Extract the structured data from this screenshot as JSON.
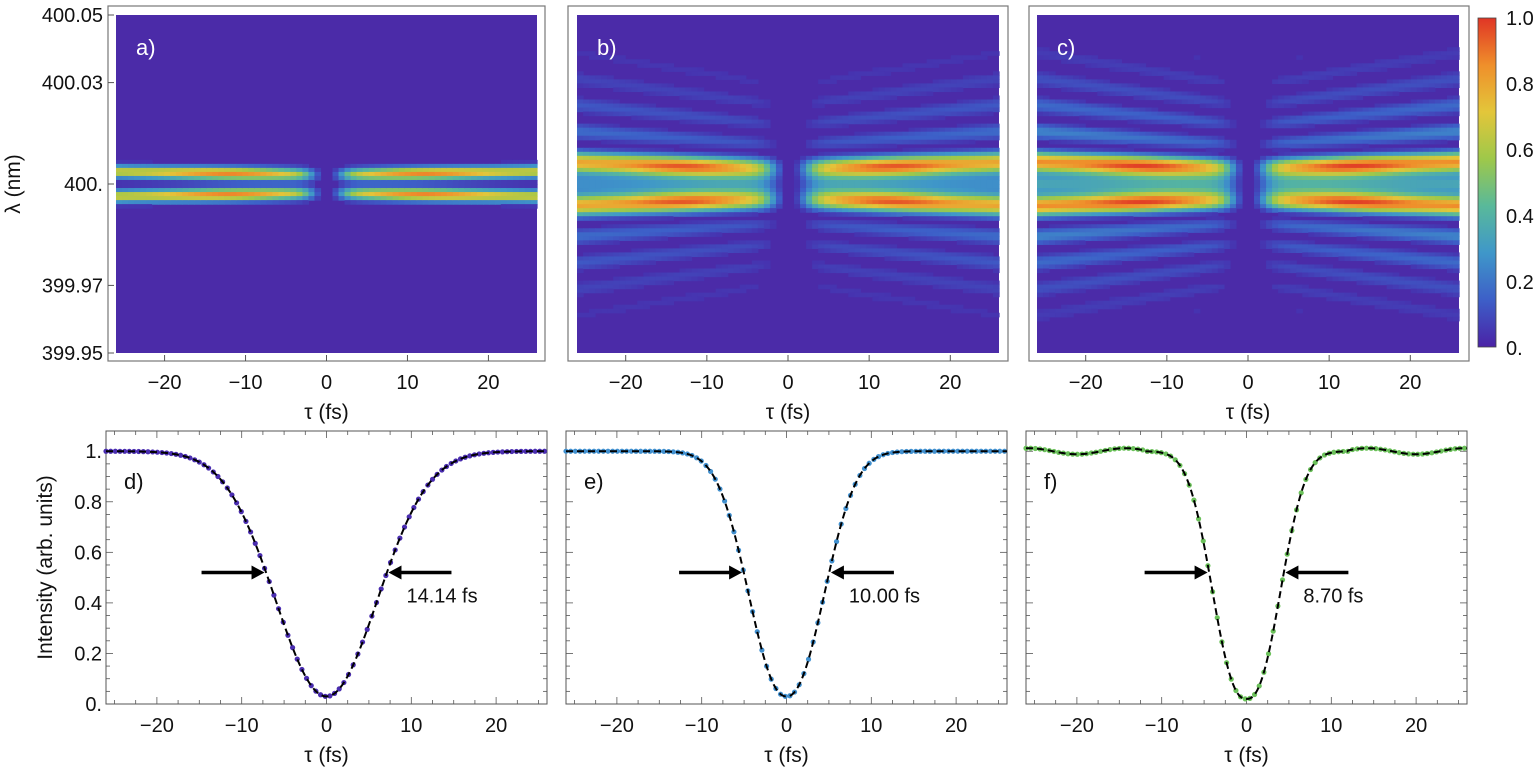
{
  "colors": {
    "background_blue": "#4b2ba8",
    "panel_frame": "#777777",
    "arrow": "#000000",
    "fit_line": "#000000",
    "colormap_stops": [
      "#4a22a6",
      "#3d5fc8",
      "#3f97c9",
      "#59b99a",
      "#9ec84a",
      "#e3c63a",
      "#ef8f2b",
      "#e03525"
    ]
  },
  "chart_data": [
    {
      "id": "a",
      "type": "heatmap",
      "panel_label": "a)",
      "xlabel": "τ (fs)",
      "ylabel": "λ (nm)",
      "xlim": [
        -26,
        26
      ],
      "ylim": [
        399.95,
        400.05
      ],
      "x_ticks": [
        -20,
        -10,
        0,
        10,
        20
      ],
      "x_tick_labels": [
        "−20",
        "−10",
        "0",
        "10",
        "20"
      ],
      "y_ticks": [
        400.05,
        400.03,
        400.0,
        399.97,
        399.95
      ],
      "y_tick_labels": [
        "400.05",
        "400.03",
        "400.",
        "399.97",
        "399.95"
      ],
      "center_wavelength": 400.0,
      "split_wavelength": 0.0027,
      "band_width": 0.0018,
      "fringe_strength": 0.0,
      "dip_halfwidth": 2.3,
      "edge_spread": 0.35,
      "peak_shift": 0.0
    },
    {
      "id": "b",
      "type": "heatmap",
      "panel_label": "b)",
      "xlabel": "τ (fs)",
      "ylabel": "",
      "xlim": [
        -26,
        26
      ],
      "ylim": [
        399.95,
        400.05
      ],
      "x_ticks": [
        -20,
        -10,
        0,
        10,
        20
      ],
      "x_tick_labels": [
        "−20",
        "−10",
        "0",
        "10",
        "20"
      ],
      "center_wavelength": 400.0,
      "split_wavelength": 0.0038,
      "band_width": 0.003,
      "fringe_strength": 0.55,
      "dip_halfwidth": 2.6,
      "edge_spread": 0.5,
      "peak_shift": 0.2
    },
    {
      "id": "c",
      "type": "heatmap",
      "panel_label": "c)",
      "xlabel": "τ (fs)",
      "ylabel": "",
      "xlim": [
        -26,
        26
      ],
      "ylim": [
        399.95,
        400.05
      ],
      "x_ticks": [
        -20,
        -10,
        0,
        10,
        20
      ],
      "x_tick_labels": [
        "−20",
        "−10",
        "0",
        "10",
        "20"
      ],
      "center_wavelength": 400.0,
      "split_wavelength": 0.0038,
      "band_width": 0.003,
      "fringe_strength": 0.75,
      "dip_halfwidth": 2.5,
      "edge_spread": 0.5,
      "peak_shift": 0.0
    },
    {
      "id": "d",
      "type": "line",
      "panel_label": "d)",
      "xlabel": "τ (fs)",
      "ylabel": "Intensity (arb. units)",
      "xlim": [
        -26,
        26
      ],
      "ylim": [
        0,
        1.08
      ],
      "x_ticks": [
        -20,
        -10,
        0,
        10,
        20
      ],
      "x_tick_labels": [
        "−20",
        "−10",
        "0",
        "10",
        "20"
      ],
      "y_ticks": [
        1.0,
        0.8,
        0.6,
        0.4,
        0.2,
        0.0
      ],
      "y_tick_labels": [
        "1.",
        "0.8",
        "0.6",
        "0.4",
        "0.2",
        "0."
      ],
      "series_color": "#4a2db0",
      "min_value": 0.03,
      "fwhm_fs": 14.14,
      "shape_exponent": 2.0,
      "marker_step": 1.0,
      "fwhm_label": "14.14 fs",
      "arrow_level": 0.52,
      "ripple": 0.0
    },
    {
      "id": "e",
      "type": "line",
      "panel_label": "e)",
      "xlabel": "τ (fs)",
      "ylabel": "",
      "xlim": [
        -26,
        26
      ],
      "ylim": [
        0,
        1.08
      ],
      "x_ticks": [
        -20,
        -10,
        0,
        10,
        20
      ],
      "x_tick_labels": [
        "−20",
        "−10",
        "0",
        "10",
        "20"
      ],
      "series_color": "#4190cf",
      "min_value": 0.03,
      "fwhm_fs": 10.0,
      "shape_exponent": 2.2,
      "marker_step": 1.0,
      "fwhm_label": "10.00 fs",
      "arrow_level": 0.52,
      "ripple": 0.0
    },
    {
      "id": "f",
      "type": "line",
      "panel_label": "f)",
      "xlabel": "τ (fs)",
      "ylabel": "",
      "xlim": [
        -26,
        26
      ],
      "ylim": [
        0,
        1.08
      ],
      "x_ticks": [
        -20,
        -10,
        0,
        10,
        20
      ],
      "x_tick_labels": [
        "−20",
        "−10",
        "0",
        "10",
        "20"
      ],
      "series_color": "#6bc15a",
      "min_value": 0.02,
      "fwhm_fs": 8.7,
      "shape_exponent": 2.4,
      "marker_step": 1.0,
      "fwhm_label": "8.70 fs",
      "arrow_level": 0.52,
      "ripple": 0.012
    }
  ],
  "colorbar": {
    "range": [
      0.0,
      1.0
    ],
    "tick_values": [
      1.0,
      0.8,
      0.6,
      0.4,
      0.2,
      0.0
    ],
    "tick_labels": [
      "1.0",
      "0.8",
      "0.6",
      "0.4",
      "0.2",
      "0."
    ]
  }
}
